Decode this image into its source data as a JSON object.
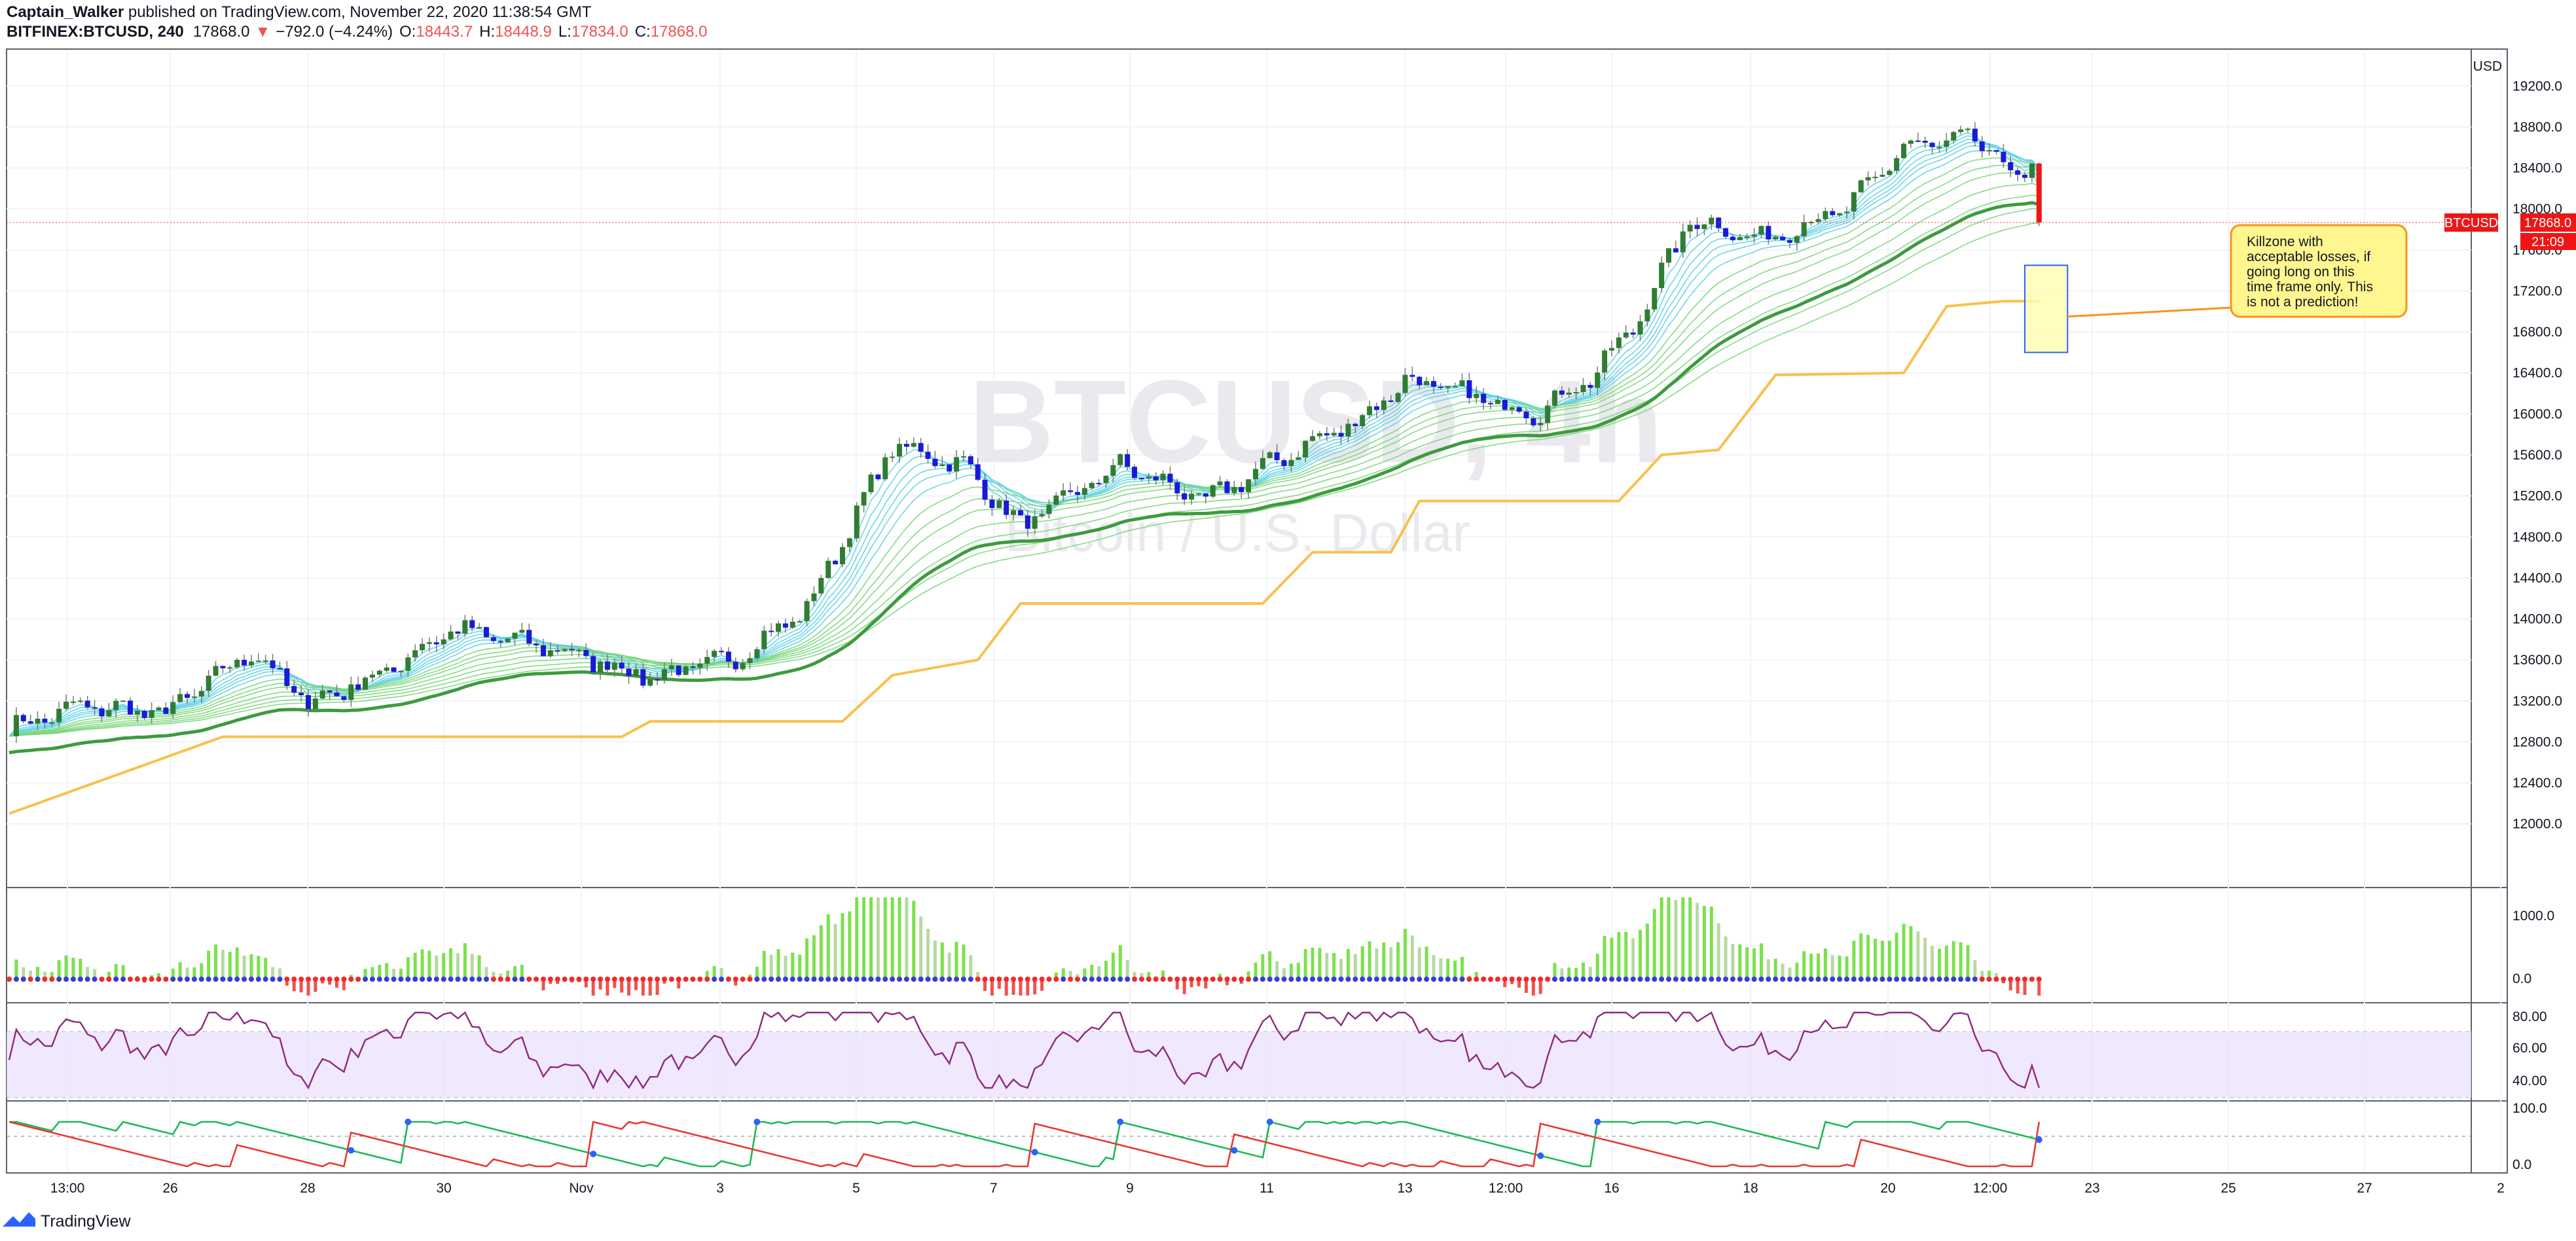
{
  "header": {
    "author": "Captain_Walker",
    "published": " published on TradingView.com, November 22, 2020 11:38:54 GMT",
    "symbol": "BITFINEX:BTCUSD, 240",
    "last": "17868.0",
    "arrow": "▼",
    "change": "−792.0 (−4.24%)",
    "o_label": "O:",
    "o": "18443.7",
    "h_label": "H:",
    "h": "18448.9",
    "l_label": "L:",
    "l": "17834.0",
    "c_label": "C:",
    "c": "17868.0"
  },
  "watermark": {
    "symbol": "BTCUSD, 4h",
    "name": "Bitcoin / U.S. Dollar"
  },
  "price_axis": {
    "currency": "USD",
    "ticks": [
      "19200.0",
      "18800.0",
      "18400.0",
      "18000.0",
      "17600.0",
      "17200.0",
      "16800.0",
      "16400.0",
      "16000.0",
      "15600.0",
      "15200.0",
      "14800.0",
      "14400.0",
      "14000.0",
      "13600.0",
      "13200.0",
      "12800.0",
      "12400.0",
      "12000.0"
    ],
    "price_label": "BTCUSD",
    "price_value": "17868.0",
    "countdown": "21:09"
  },
  "time_axis": {
    "ticks": [
      "13:00",
      "26",
      "28",
      "30",
      "Nov",
      "3",
      "5",
      "7",
      "9",
      "11",
      "13",
      "12:00",
      "16",
      "18",
      "20",
      "12:00",
      "23",
      "25",
      "27",
      "2"
    ]
  },
  "annotation": {
    "lines": [
      "Killzone with",
      "acceptable losses, if",
      "going long on this",
      "time frame only. This",
      "is not a prediction!"
    ]
  },
  "osc_axis": {
    "ticks": [
      "1000.0",
      "0.0"
    ]
  },
  "rsi_axis": {
    "ticks": [
      "80.00",
      "60.00",
      "40.00"
    ]
  },
  "aroon_axis": {
    "ticks": [
      "100.0",
      "0.0"
    ]
  },
  "footer": {
    "brand": "TradingView"
  },
  "colors": {
    "bull": "#2e7d32",
    "bear": "#1a1ad6",
    "last_bear": "#f01515",
    "ribbon_fast": "#5fd1e6",
    "ribbon_slow": "#7ad67a",
    "stop": "#f9c04b",
    "rsi": "#8e2a7e",
    "aroon_up": "#1db954",
    "aroon_down": "#e53935"
  },
  "chart_data": {
    "type": "candlestick",
    "symbol": "BITFINEX:BTCUSD",
    "timeframe": "240",
    "ylim": [
      11800,
      19400
    ],
    "anchors": [
      {
        "t": 0,
        "p": 12930
      },
      {
        "t": 10,
        "p": 13150
      },
      {
        "t": 22,
        "p": 13080
      },
      {
        "t": 34,
        "p": 13680
      },
      {
        "t": 42,
        "p": 13180
      },
      {
        "t": 52,
        "p": 13450
      },
      {
        "t": 62,
        "p": 13900
      },
      {
        "t": 76,
        "p": 13720
      },
      {
        "t": 90,
        "p": 13430
      },
      {
        "t": 102,
        "p": 13620
      },
      {
        "t": 112,
        "p": 14100
      },
      {
        "t": 124,
        "p": 15690
      },
      {
        "t": 134,
        "p": 15500
      },
      {
        "t": 142,
        "p": 14900
      },
      {
        "t": 156,
        "p": 15500
      },
      {
        "t": 168,
        "p": 15150
      },
      {
        "t": 178,
        "p": 15550
      },
      {
        "t": 190,
        "p": 15960
      },
      {
        "t": 196,
        "p": 16330
      },
      {
        "t": 204,
        "p": 16200
      },
      {
        "t": 214,
        "p": 16000
      },
      {
        "t": 222,
        "p": 16350
      },
      {
        "t": 228,
        "p": 16840
      },
      {
        "t": 236,
        "p": 17900
      },
      {
        "t": 246,
        "p": 17700
      },
      {
        "t": 258,
        "p": 18000
      },
      {
        "t": 266,
        "p": 18600
      },
      {
        "t": 276,
        "p": 18680
      },
      {
        "t": 284,
        "p": 18200
      },
      {
        "t": 285,
        "p": 17868
      }
    ],
    "last_candle": {
      "open": 18443.7,
      "high": 18448.9,
      "low": 17834.0,
      "close": 17868.0
    },
    "stop_line": [
      {
        "t": 0,
        "p": 12100
      },
      {
        "t": 30,
        "p": 12850
      },
      {
        "t": 86,
        "p": 12850
      },
      {
        "t": 90,
        "p": 13000
      },
      {
        "t": 117,
        "p": 13000
      },
      {
        "t": 124,
        "p": 13450
      },
      {
        "t": 136,
        "p": 13600
      },
      {
        "t": 142,
        "p": 14150
      },
      {
        "t": 176,
        "p": 14150
      },
      {
        "t": 183,
        "p": 14650
      },
      {
        "t": 194,
        "p": 14650
      },
      {
        "t": 198,
        "p": 15150
      },
      {
        "t": 226,
        "p": 15150
      },
      {
        "t": 232,
        "p": 15600
      },
      {
        "t": 240,
        "p": 15650
      },
      {
        "t": 248,
        "p": 16380
      },
      {
        "t": 266,
        "p": 16400
      },
      {
        "t": 272,
        "p": 17050
      },
      {
        "t": 280,
        "p": 17100
      },
      {
        "t": 285,
        "p": 17100
      }
    ],
    "killzone": {
      "t_start": 283,
      "t_end": 289,
      "price_low": 16600,
      "price_high": 17450
    },
    "oscillator_ylim": [
      -300,
      1300
    ],
    "rsi_ylim": [
      30,
      90
    ],
    "rsi_band": [
      40,
      70
    ],
    "aroon_ylim": [
      0,
      100
    ]
  }
}
